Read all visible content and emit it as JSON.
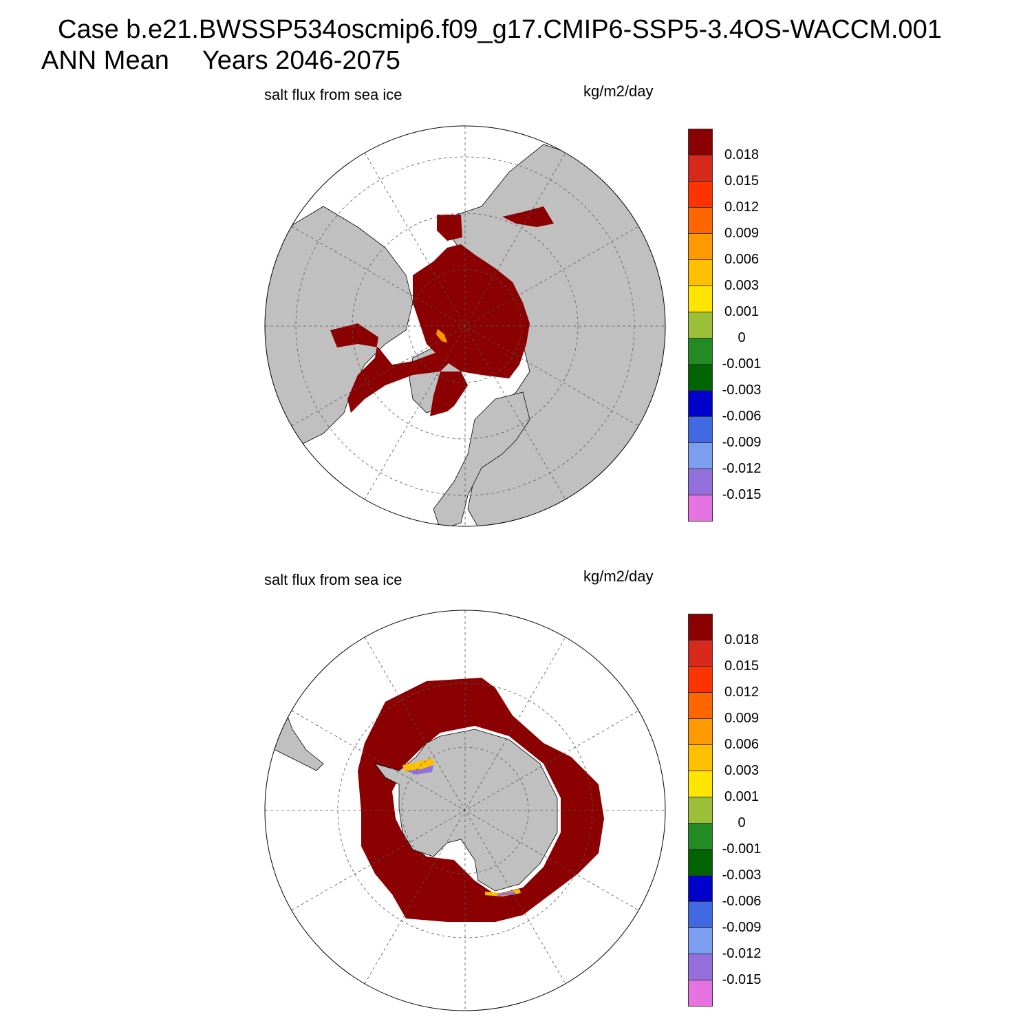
{
  "title": {
    "line1": "Case b.e21.BWSSP534oscmip6.f09_g17.CMIP6-SSP5-3.4OS-WACCM.001",
    "season": "ANN Mean",
    "years": "Years 2046-2075"
  },
  "panels": [
    {
      "hemisphere": "north",
      "variable": "salt flux from sea ice",
      "units": "kg/m2/day"
    },
    {
      "hemisphere": "south",
      "variable": "salt flux from sea ice",
      "units": "kg/m2/day"
    }
  ],
  "colorbar": {
    "labels": [
      "0.018",
      "0.015",
      "0.012",
      "0.009",
      "0.006",
      "0.003",
      "0.001",
      "0",
      "-0.001",
      "-0.003",
      "-0.006",
      "-0.009",
      "-0.012",
      "-0.015"
    ],
    "colors": [
      "#8b0000",
      "#d7281c",
      "#ff3300",
      "#ff6600",
      "#ff9900",
      "#ffc000",
      "#ffe600",
      "#9bbf37",
      "#228b22",
      "#006400",
      "#0000cd",
      "#4169e1",
      "#7b9ef0",
      "#9370db",
      "#e573e0"
    ]
  },
  "colors": {
    "land": "#c0c0c0",
    "ocean": "#ffffff",
    "ice_flux": "#8b0000"
  }
}
